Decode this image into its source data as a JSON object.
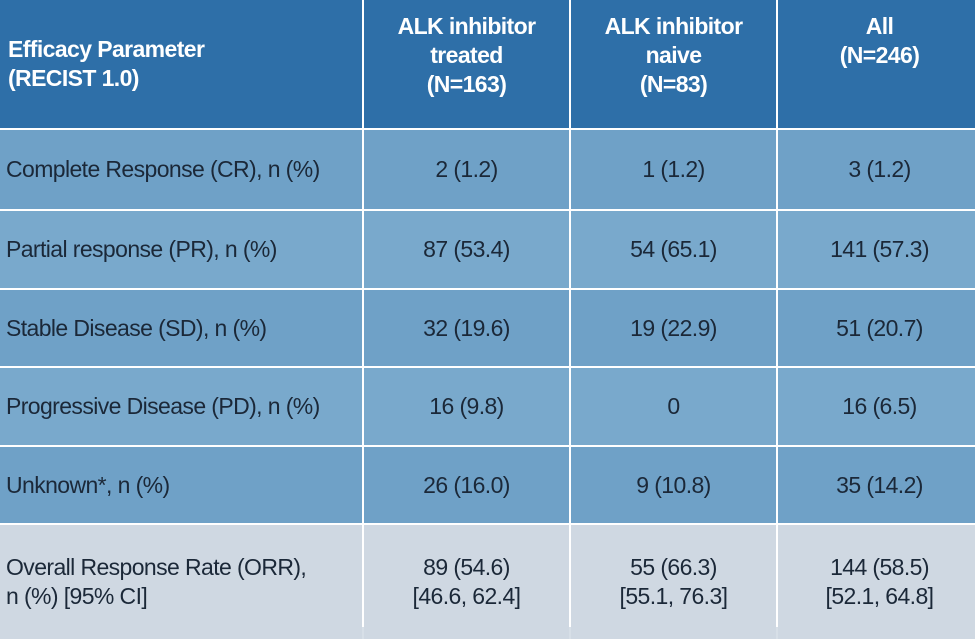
{
  "table": {
    "header": {
      "param": "Efficacy Parameter\n(RECIST 1.0)",
      "col1": "ALK inhibitor\ntreated\n(N=163)",
      "col2": "ALK inhibitor\nnaive\n(N=83)",
      "col3": "All\n(N=246)"
    },
    "rows": [
      {
        "label": "Complete Response (CR), n (%)",
        "c1": "2 (1.2)",
        "c2": "1 (1.2)",
        "c3": "3 (1.2)"
      },
      {
        "label": "Partial response (PR), n (%)",
        "c1": "87 (53.4)",
        "c2": "54 (65.1)",
        "c3": "141 (57.3)"
      },
      {
        "label": "Stable Disease (SD), n (%)",
        "c1": "32 (19.6)",
        "c2": "19 (22.9)",
        "c3": "51 (20.7)"
      },
      {
        "label": "Progressive Disease (PD), n (%)",
        "c1": "16 (9.8)",
        "c2": "0",
        "c3": "16 (6.5)"
      },
      {
        "label": "Unknown*, n (%)",
        "c1": "26 (16.0)",
        "c2": "9 (10.8)",
        "c3": "35 (14.2)"
      },
      {
        "label": "Overall Response Rate (ORR),\nn (%) [95% CI]",
        "c1": "89 (54.6)\n[46.6, 62.4]",
        "c2": "55 (66.3)\n[55.1, 76.3]",
        "c3": "144 (58.5)\n[52.1, 64.8]"
      }
    ]
  }
}
